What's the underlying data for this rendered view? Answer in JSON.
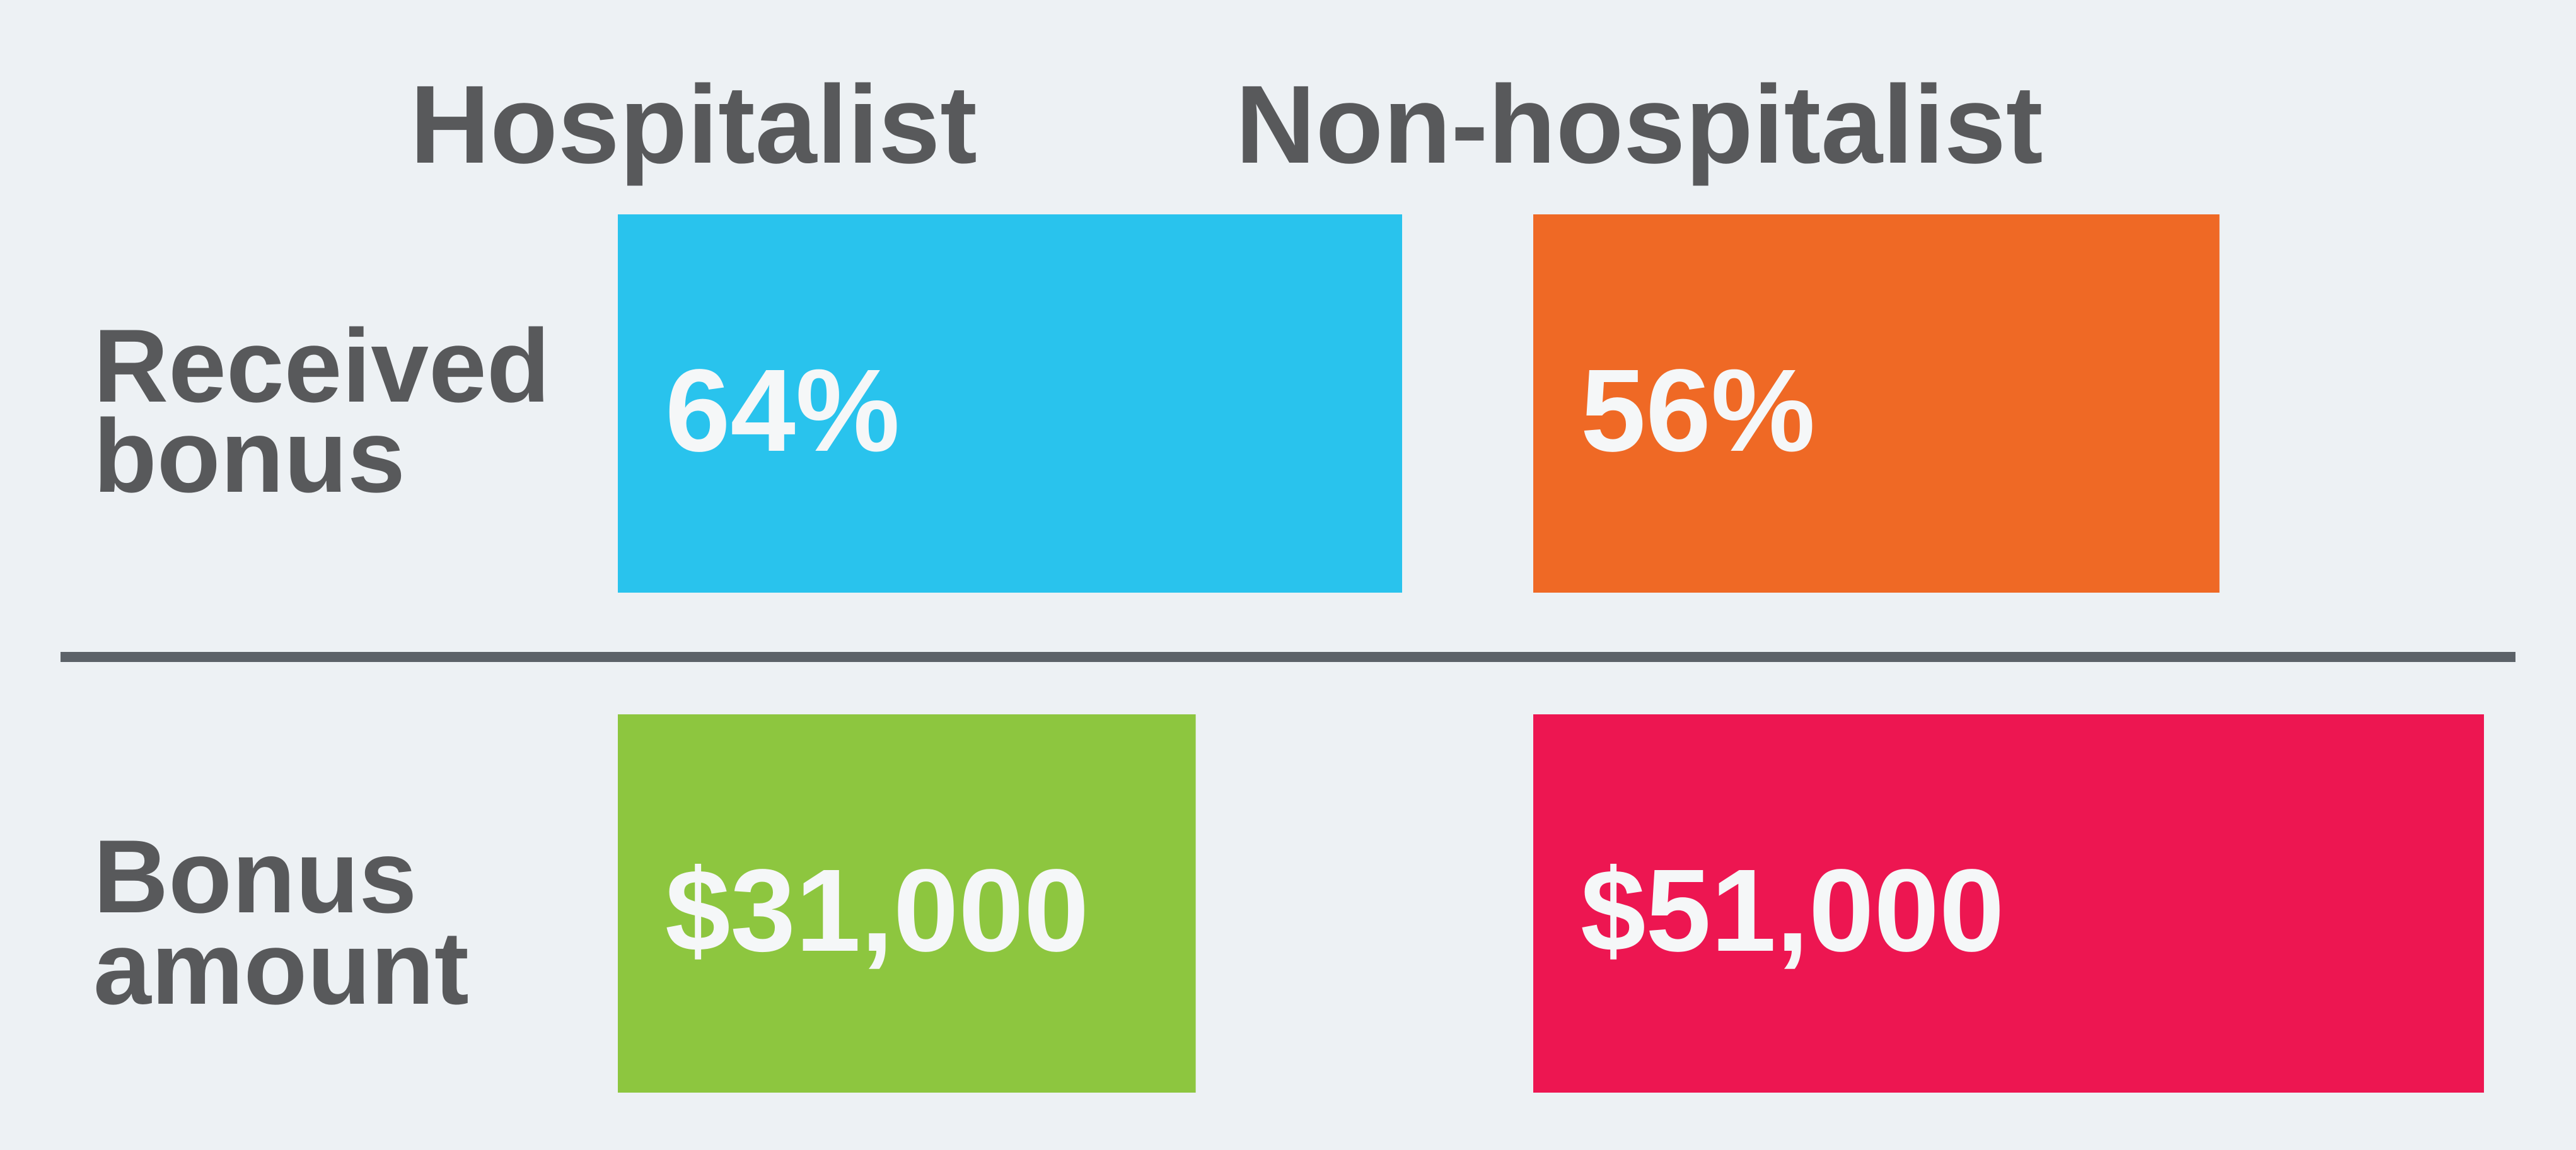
{
  "chart_data": {
    "type": "bar",
    "columns": [
      "Hospitalist",
      "Non-hospitalist"
    ],
    "rows": [
      {
        "label": [
          "Received",
          "bonus"
        ],
        "values": [
          64,
          56
        ],
        "display": [
          "64%",
          "56%"
        ],
        "unit": "%",
        "colors": [
          "#29c3ed",
          "#ef6925"
        ]
      },
      {
        "label": [
          "Bonus",
          "amount"
        ],
        "values": [
          31000,
          51000
        ],
        "display": [
          "$31,000",
          "$51,000"
        ],
        "unit": "$",
        "colors": [
          "#8dc63f",
          "#ed1651"
        ]
      }
    ],
    "text_color": "#58595b",
    "value_text_color": "#f5f7f8",
    "divider_color": "#5c6268",
    "background": "#edf1f4",
    "grid": false
  }
}
